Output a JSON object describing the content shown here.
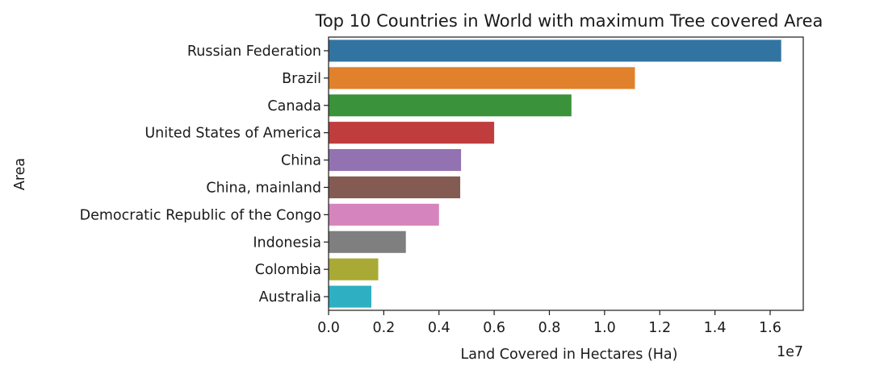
{
  "chart_data": {
    "type": "bar",
    "orientation": "horizontal",
    "title": "Top 10 Countries in World with maximum Tree covered Area",
    "xlabel": "Land Covered in Hectares (Ha)",
    "ylabel": "Area",
    "x_offset_label": "1e7",
    "xlim": [
      0,
      17200000
    ],
    "x_ticks": [
      0,
      2000000,
      4000000,
      6000000,
      8000000,
      10000000,
      12000000,
      14000000,
      16000000
    ],
    "x_tick_labels": [
      "0.0",
      "0.2",
      "0.4",
      "0.6",
      "0.8",
      "1.0",
      "1.2",
      "1.4",
      "1.6"
    ],
    "grid": false,
    "categories": [
      "Russian Federation",
      "Brazil",
      "Canada",
      "United States of America",
      "China",
      "China, mainland",
      "Democratic Republic of the Congo",
      "Indonesia",
      "Colombia",
      "Australia"
    ],
    "values": [
      16400000,
      11100000,
      8800000,
      6000000,
      4800000,
      4770000,
      4000000,
      2800000,
      1800000,
      1550000
    ],
    "colors": [
      "#3274a1",
      "#e1812c",
      "#3a923a",
      "#c03d3e",
      "#9372b2",
      "#845b53",
      "#d684bd",
      "#7f7f7f",
      "#a9aa35",
      "#2eb0c2"
    ]
  }
}
